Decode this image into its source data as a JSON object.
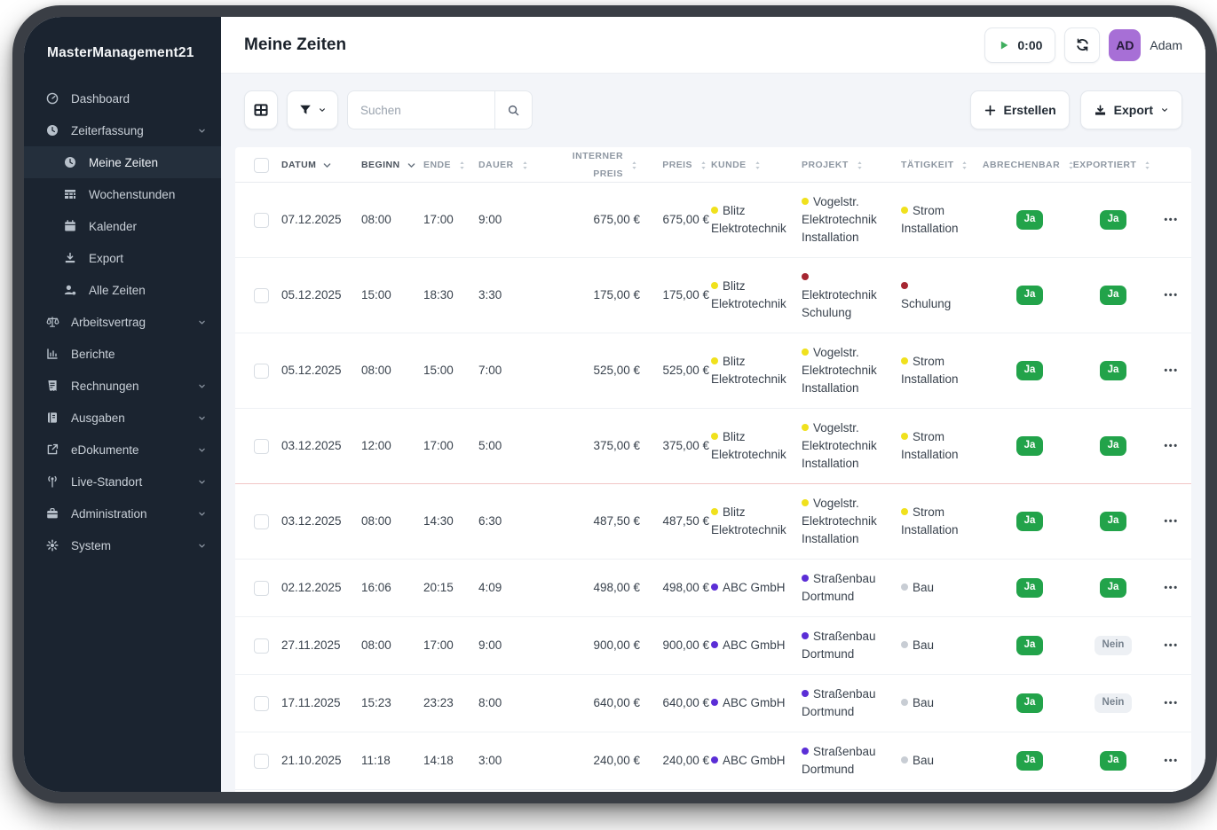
{
  "app": {
    "brand": "MasterManagement21"
  },
  "header": {
    "title": "Meine Zeiten",
    "timer_value": "0:00",
    "user_initials": "AD",
    "user_name": "Adam"
  },
  "toolbar": {
    "search_placeholder": "Suchen",
    "create_label": "Erstellen",
    "export_label": "Export"
  },
  "sidebar": {
    "items": [
      {
        "label": "Dashboard",
        "icon": "gauge"
      },
      {
        "label": "Zeiterfassung",
        "icon": "clock",
        "expanded": true,
        "children": [
          {
            "label": "Meine Zeiten",
            "icon": "clock",
            "active": true
          },
          {
            "label": "Wochenstunden",
            "icon": "grid"
          },
          {
            "label": "Kalender",
            "icon": "calendar"
          },
          {
            "label": "Export",
            "icon": "download"
          },
          {
            "label": "Alle Zeiten",
            "icon": "users"
          }
        ]
      },
      {
        "label": "Arbeitsvertrag",
        "icon": "scales",
        "expandable": true
      },
      {
        "label": "Berichte",
        "icon": "chart"
      },
      {
        "label": "Rechnungen",
        "icon": "invoice",
        "expandable": true
      },
      {
        "label": "Ausgaben",
        "icon": "book",
        "expandable": true
      },
      {
        "label": "eDokumente",
        "icon": "external",
        "expandable": true
      },
      {
        "label": "Live-Standort",
        "icon": "antenna",
        "expandable": true
      },
      {
        "label": "Administration",
        "icon": "briefcase",
        "expandable": true
      },
      {
        "label": "System",
        "icon": "gear",
        "expandable": true
      }
    ]
  },
  "table": {
    "columns": [
      {
        "key": "datum",
        "label": "DATUM",
        "sort": "chevron"
      },
      {
        "key": "beginn",
        "label": "BEGINN",
        "sort": "chevron"
      },
      {
        "key": "ende",
        "label": "ENDE",
        "sort": "updown"
      },
      {
        "key": "dauer",
        "label": "DAUER",
        "sort": "updown"
      },
      {
        "key": "interner_preis",
        "label": "INTERNER PREIS",
        "sort": "updown"
      },
      {
        "key": "preis",
        "label": "PREIS",
        "sort": "updown"
      },
      {
        "key": "kunde",
        "label": "KUNDE",
        "sort": "updown"
      },
      {
        "key": "projekt",
        "label": "PROJEKT",
        "sort": "updown"
      },
      {
        "key": "taetigkeit",
        "label": "TÄTIGKEIT",
        "sort": "updown"
      },
      {
        "key": "abrechenbar",
        "label": "ABRECHENBAR",
        "sort": "updown"
      },
      {
        "key": "exportiert",
        "label": "EXPORTIERT",
        "sort": "updown"
      }
    ],
    "divider_after_row_index": 3,
    "rows": [
      {
        "datum": "07.12.2025",
        "beginn": "08:00",
        "ende": "17:00",
        "dauer": "9:00",
        "interner_preis": "675,00 €",
        "preis": "675,00 €",
        "kunde": {
          "text": "Blitz\nElektrotechnik",
          "dot": "yellow"
        },
        "projekt": {
          "text": "Vogelstr.\nElektrotechnik\nInstallation",
          "dot": "yellow"
        },
        "taetigkeit": {
          "text": "Strom\nInstallation",
          "dot": "yellow"
        },
        "abrechenbar": "Ja",
        "exportiert": "Ja"
      },
      {
        "datum": "05.12.2025",
        "beginn": "15:00",
        "ende": "18:30",
        "dauer": "3:30",
        "interner_preis": "175,00 €",
        "preis": "175,00 €",
        "kunde": {
          "text": "Blitz\nElektrotechnik",
          "dot": "yellow"
        },
        "projekt": {
          "text": "\nElektrotechnik\nSchulung",
          "dot": "red"
        },
        "taetigkeit": {
          "text": "\nSchulung",
          "dot": "red"
        },
        "abrechenbar": "Ja",
        "exportiert": "Ja"
      },
      {
        "datum": "05.12.2025",
        "beginn": "08:00",
        "ende": "15:00",
        "dauer": "7:00",
        "interner_preis": "525,00 €",
        "preis": "525,00 €",
        "kunde": {
          "text": "Blitz\nElektrotechnik",
          "dot": "yellow"
        },
        "projekt": {
          "text": "Vogelstr.\nElektrotechnik\nInstallation",
          "dot": "yellow"
        },
        "taetigkeit": {
          "text": "Strom\nInstallation",
          "dot": "yellow"
        },
        "abrechenbar": "Ja",
        "exportiert": "Ja"
      },
      {
        "datum": "03.12.2025",
        "beginn": "12:00",
        "ende": "17:00",
        "dauer": "5:00",
        "interner_preis": "375,00 €",
        "preis": "375,00 €",
        "kunde": {
          "text": "Blitz\nElektrotechnik",
          "dot": "yellow"
        },
        "projekt": {
          "text": "Vogelstr.\nElektrotechnik\nInstallation",
          "dot": "yellow"
        },
        "taetigkeit": {
          "text": "Strom\nInstallation",
          "dot": "yellow"
        },
        "abrechenbar": "Ja",
        "exportiert": "Ja"
      },
      {
        "datum": "03.12.2025",
        "beginn": "08:00",
        "ende": "14:30",
        "dauer": "6:30",
        "interner_preis": "487,50 €",
        "preis": "487,50 €",
        "kunde": {
          "text": "Blitz\nElektrotechnik",
          "dot": "yellow"
        },
        "projekt": {
          "text": "Vogelstr.\nElektrotechnik\nInstallation",
          "dot": "yellow"
        },
        "taetigkeit": {
          "text": "Strom\nInstallation",
          "dot": "yellow"
        },
        "abrechenbar": "Ja",
        "exportiert": "Ja"
      },
      {
        "datum": "02.12.2025",
        "beginn": "16:06",
        "ende": "20:15",
        "dauer": "4:09",
        "interner_preis": "498,00 €",
        "preis": "498,00 €",
        "kunde": {
          "text": "ABC GmbH",
          "dot": "purple"
        },
        "projekt": {
          "text": "Straßenbau\nDortmund",
          "dot": "purple"
        },
        "taetigkeit": {
          "text": "Bau",
          "dot": "gray"
        },
        "abrechenbar": "Ja",
        "exportiert": "Ja"
      },
      {
        "datum": "27.11.2025",
        "beginn": "08:00",
        "ende": "17:00",
        "dauer": "9:00",
        "interner_preis": "900,00 €",
        "preis": "900,00 €",
        "kunde": {
          "text": "ABC GmbH",
          "dot": "purple"
        },
        "projekt": {
          "text": "Straßenbau\nDortmund",
          "dot": "purple"
        },
        "taetigkeit": {
          "text": "Bau",
          "dot": "gray"
        },
        "abrechenbar": "Ja",
        "exportiert": "Nein"
      },
      {
        "datum": "17.11.2025",
        "beginn": "15:23",
        "ende": "23:23",
        "dauer": "8:00",
        "interner_preis": "640,00 €",
        "preis": "640,00 €",
        "kunde": {
          "text": "ABC GmbH",
          "dot": "purple"
        },
        "projekt": {
          "text": "Straßenbau\nDortmund",
          "dot": "purple"
        },
        "taetigkeit": {
          "text": "Bau",
          "dot": "gray"
        },
        "abrechenbar": "Ja",
        "exportiert": "Nein"
      },
      {
        "datum": "21.10.2025",
        "beginn": "11:18",
        "ende": "14:18",
        "dauer": "3:00",
        "interner_preis": "240,00 €",
        "preis": "240,00 €",
        "kunde": {
          "text": "ABC GmbH",
          "dot": "purple"
        },
        "projekt": {
          "text": "Straßenbau\nDortmund",
          "dot": "purple"
        },
        "taetigkeit": {
          "text": "Bau",
          "dot": "gray"
        },
        "abrechenbar": "Ja",
        "exportiert": "Ja"
      }
    ]
  },
  "colors": {
    "sidebar_bg": "#1b2430",
    "badge_yes": "#22a34a",
    "badge_no_bg": "#edf0f4",
    "badge_no_text": "#77828e",
    "dot_yellow": "#f0e11d",
    "dot_red": "#a62631",
    "dot_purple": "#5b2ed6",
    "dot_gray": "#c8cdd4",
    "avatar_bg": "#a76fd6",
    "play_green": "#3fae5e",
    "divider_red": "#f2c6c6"
  }
}
